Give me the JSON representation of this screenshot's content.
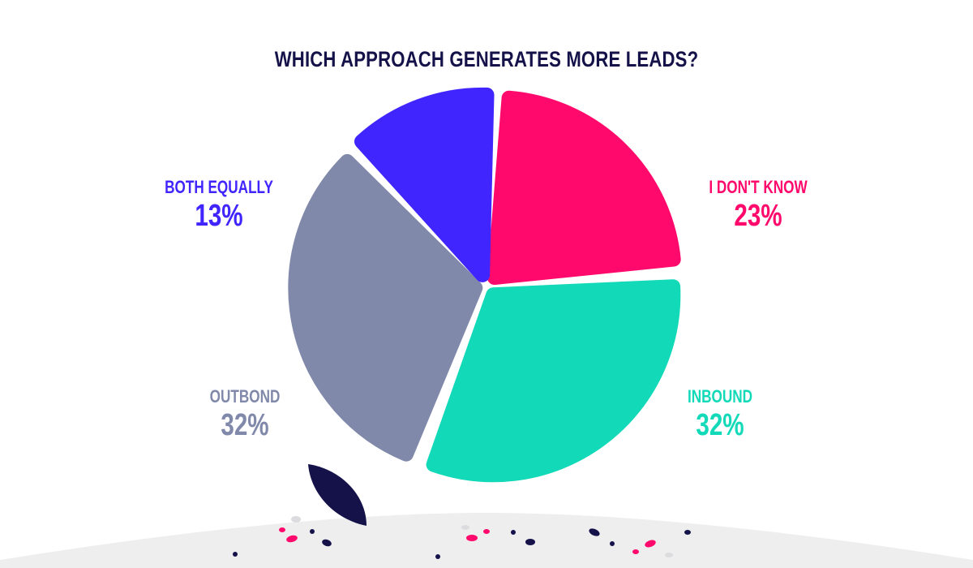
{
  "title": "WHICH APPROACH GENERATES MORE LEADS?",
  "colors": {
    "title": "#15124a",
    "inbound": "#12d9b8",
    "outbound": "#8089aa",
    "both_equally": "#4125fe",
    "i_dont_know": "#ff0a6c",
    "ground": "#eeeeef",
    "leaf": "#15124a"
  },
  "labels": {
    "both_equally": {
      "name": "BOTH EQUALLY",
      "pct": "13%"
    },
    "i_dont_know": {
      "name": "I DON'T KNOW",
      "pct": "23%"
    },
    "outbound": {
      "name": "OUTBOND",
      "pct": "32%"
    },
    "inbound": {
      "name": "INBOUND",
      "pct": "32%"
    }
  },
  "chart_data": {
    "type": "pie",
    "title": "WHICH APPROACH GENERATES MORE LEADS?",
    "categories": [
      "I DON'T KNOW",
      "INBOUND",
      "OUTBOND",
      "BOTH EQUALLY"
    ],
    "values": [
      23,
      32,
      32,
      13
    ],
    "unit": "%",
    "colors": [
      "#ff0a6c",
      "#12d9b8",
      "#8089aa",
      "#4125fe"
    ]
  }
}
